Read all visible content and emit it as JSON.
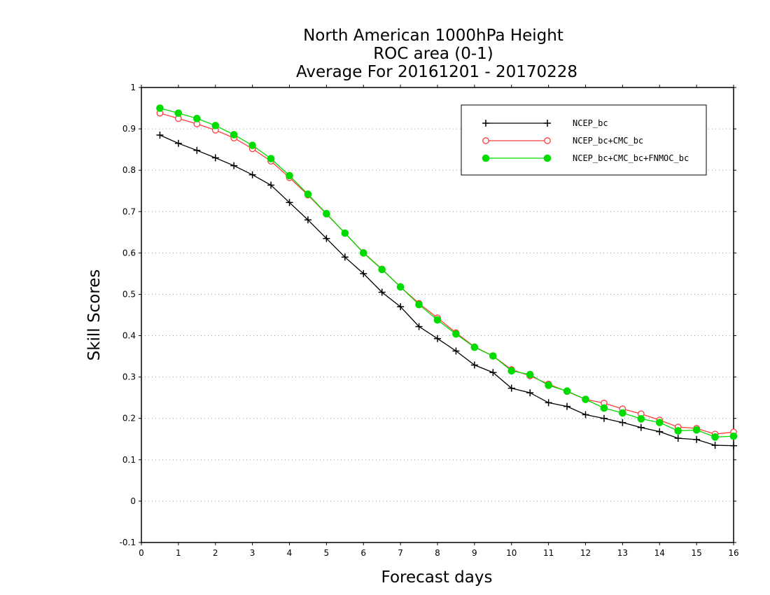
{
  "chart_data": {
    "type": "line",
    "title_lines": [
      "North American 1000hPa Height",
      "ROC area (0-1)",
      "Average For 20161201 - 20170228"
    ],
    "xlabel": "Forecast days",
    "ylabel": "Skill Scores",
    "xlim": [
      0,
      16
    ],
    "ylim": [
      -0.1,
      1
    ],
    "x_ticks": [
      "0",
      "1",
      "2",
      "3",
      "4",
      "5",
      "6",
      "7",
      "8",
      "9",
      "10",
      "11",
      "12",
      "13",
      "14",
      "15",
      "16"
    ],
    "y_ticks": [
      "-0.1",
      "0",
      "0.1",
      "0.2",
      "0.3",
      "0.4",
      "0.5",
      "0.6",
      "0.7",
      "0.8",
      "0.9",
      "1"
    ],
    "grid": "horizontal dotted",
    "legend_position": "top-right",
    "x": [
      0.5,
      1,
      1.5,
      2,
      2.5,
      3,
      3.5,
      4,
      4.5,
      5,
      5.5,
      6,
      6.5,
      7,
      7.5,
      8,
      8.5,
      9,
      9.5,
      10,
      10.5,
      11,
      11.5,
      12,
      12.5,
      13,
      13.5,
      14,
      14.5,
      15,
      15.5,
      16
    ],
    "series": [
      {
        "name": "NCEP_bc",
        "color": "#000000",
        "marker": "plus",
        "values": [
          0.885,
          0.865,
          0.848,
          0.83,
          0.811,
          0.789,
          0.764,
          0.722,
          0.68,
          0.635,
          0.59,
          0.55,
          0.505,
          0.47,
          0.422,
          0.393,
          0.363,
          0.329,
          0.311,
          0.273,
          0.262,
          0.238,
          0.229,
          0.209,
          0.2,
          0.19,
          0.178,
          0.168,
          0.152,
          0.149,
          0.135,
          0.134
        ]
      },
      {
        "name": "NCEP_bc+CMC_bc",
        "color": "#ff3c3c",
        "marker": "open-circle",
        "values": [
          0.938,
          0.925,
          0.912,
          0.897,
          0.878,
          0.852,
          0.822,
          0.782,
          0.74,
          0.694,
          0.648,
          0.601,
          0.561,
          0.518,
          0.478,
          0.443,
          0.407,
          0.373,
          0.351,
          0.318,
          0.303,
          0.283,
          0.265,
          0.246,
          0.237,
          0.223,
          0.211,
          0.196,
          0.179,
          0.176,
          0.162,
          0.167
        ]
      },
      {
        "name": "NCEP_bc+CMC_bc+FNMOC_bc",
        "color": "#00dc00",
        "marker": "filled-circle",
        "values": [
          0.95,
          0.938,
          0.925,
          0.908,
          0.886,
          0.86,
          0.828,
          0.787,
          0.742,
          0.695,
          0.648,
          0.6,
          0.56,
          0.518,
          0.475,
          0.438,
          0.404,
          0.372,
          0.351,
          0.315,
          0.306,
          0.28,
          0.266,
          0.246,
          0.225,
          0.213,
          0.199,
          0.19,
          0.17,
          0.172,
          0.155,
          0.157
        ]
      }
    ]
  }
}
